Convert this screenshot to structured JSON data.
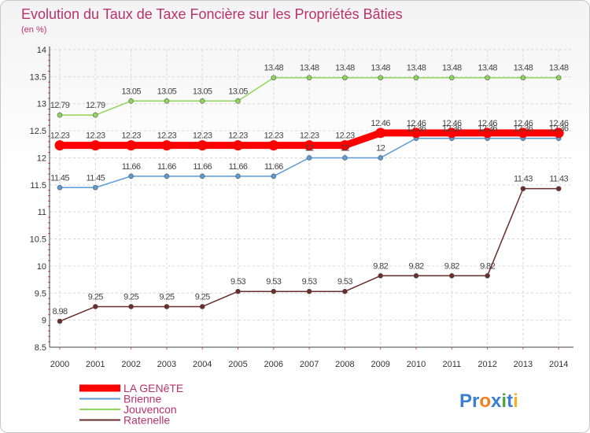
{
  "chart_data": {
    "type": "line",
    "title": "Evolution du Taux de Taxe Foncière sur les Propriétés Bâties",
    "subtitle": "(en %)",
    "xlabel": "",
    "ylabel": "",
    "categories": [
      "2000",
      "2001",
      "2002",
      "2003",
      "2004",
      "2005",
      "2006",
      "2007",
      "2008",
      "2009",
      "2010",
      "2011",
      "2012",
      "2013",
      "2014"
    ],
    "ylim": [
      8.5,
      14
    ],
    "yticks": [
      "8.5",
      "9",
      "9.5",
      "10",
      "10.5",
      "11",
      "11.5",
      "12",
      "12.5",
      "13",
      "13.5",
      "14"
    ],
    "grid": true,
    "legend_position": "bottom-left",
    "brand": "Proxiti",
    "series": [
      {
        "name": "LA GENêTE",
        "color": "#ff0000",
        "emphasis": true,
        "values": [
          12.23,
          12.23,
          12.23,
          12.23,
          12.23,
          12.23,
          12.23,
          12.23,
          12.23,
          12.46,
          12.46,
          12.46,
          12.46,
          12.46,
          12.46
        ],
        "labels": [
          "12.23",
          "12.23",
          "12.23",
          "12.23",
          "12.23",
          "12.23",
          "12.23",
          "12.23",
          "12.23",
          "12.46",
          "12.46",
          "12.46",
          "12.46",
          "12.46",
          "12.46"
        ]
      },
      {
        "name": "Brienne",
        "color": "#5b9bd5",
        "values": [
          11.45,
          11.45,
          11.66,
          11.66,
          11.66,
          11.66,
          11.66,
          12,
          12,
          12,
          12.36,
          12.36,
          12.36,
          12.36,
          12.36
        ],
        "labels": [
          "11.45",
          "11.45",
          "11.66",
          "11.66",
          "11.66",
          "11.66",
          "11.66",
          "12",
          "12",
          "12",
          "12.36",
          "12.36",
          "12.36",
          "12.36",
          "12.36"
        ]
      },
      {
        "name": "Jouvencon",
        "color": "#8fd65a",
        "values": [
          12.79,
          12.79,
          13.05,
          13.05,
          13.05,
          13.05,
          13.48,
          13.48,
          13.48,
          13.48,
          13.48,
          13.48,
          13.48,
          13.48,
          13.48
        ],
        "labels": [
          "12.79",
          "12.79",
          "13.05",
          "13.05",
          "13.05",
          "13.05",
          "13.48",
          "13.48",
          "13.48",
          "13.48",
          "13.48",
          "13.48",
          "13.48",
          "13.48",
          "13.48"
        ]
      },
      {
        "name": "Ratenelle",
        "color": "#6b2c2c",
        "values": [
          8.98,
          9.25,
          9.25,
          9.25,
          9.25,
          9.53,
          9.53,
          9.53,
          9.53,
          9.82,
          9.82,
          9.82,
          9.82,
          11.43,
          11.43
        ],
        "labels": [
          "8.98",
          "9.25",
          "9.25",
          "9.25",
          "9.25",
          "9.53",
          "9.53",
          "9.53",
          "9.53",
          "9.82",
          "9.82",
          "9.82",
          "9.82",
          "11.43",
          "11.43"
        ]
      }
    ]
  }
}
